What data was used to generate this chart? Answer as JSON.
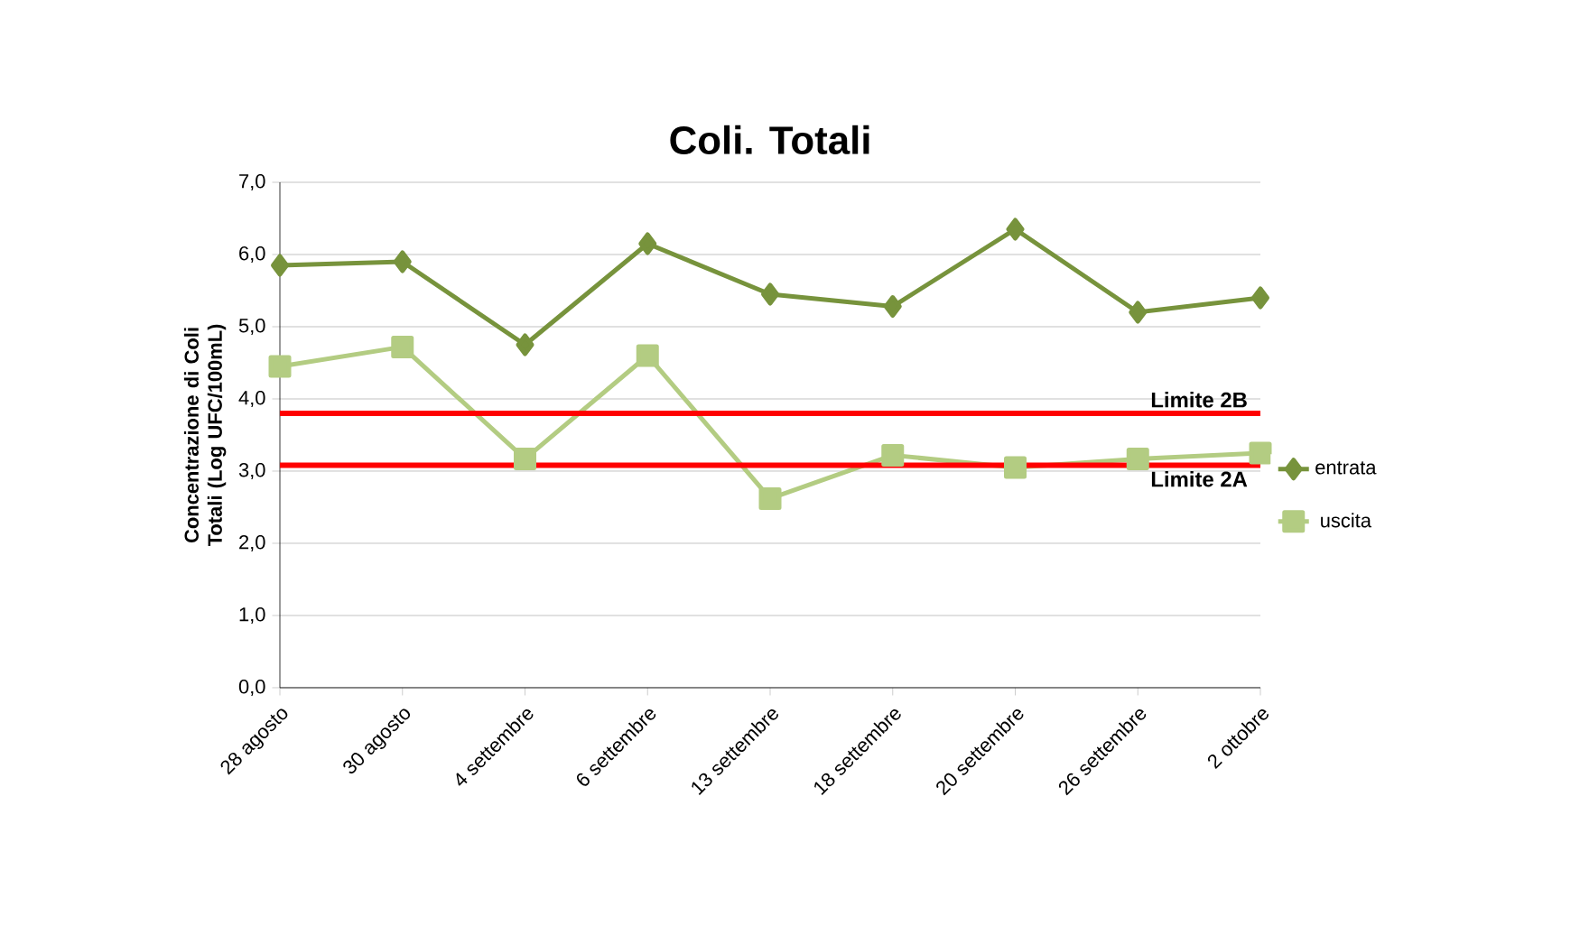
{
  "chart_data": {
    "type": "line",
    "title": "Coli. Totali",
    "ylabel": "Concentrazione di Coli Totali (Log UFC/100mL)",
    "categories": [
      "28 agosto",
      "30 agosto",
      "4 settembre",
      "6 settembre",
      "13 settembre",
      "18 settembre",
      "20 settembre",
      "26 settembre",
      "2 ottobre"
    ],
    "series": [
      {
        "name": "entrata",
        "color": "#77933c",
        "marker": "diamond",
        "values": [
          5.85,
          5.9,
          4.75,
          6.15,
          5.45,
          5.28,
          6.35,
          5.2,
          5.4
        ]
      },
      {
        "name": "uscita",
        "color": "#b3cc82",
        "marker": "square",
        "values": [
          4.45,
          4.72,
          3.17,
          4.6,
          2.62,
          3.22,
          3.05,
          3.17,
          3.25
        ]
      }
    ],
    "ylim": [
      0,
      7
    ],
    "yticks": [
      {
        "value": 0,
        "label": "0,0"
      },
      {
        "value": 1,
        "label": "1,0"
      },
      {
        "value": 2,
        "label": "2,0"
      },
      {
        "value": 3,
        "label": "3,0"
      },
      {
        "value": 4,
        "label": "4,0"
      },
      {
        "value": 5,
        "label": "5,0"
      },
      {
        "value": 6,
        "label": "6,0"
      },
      {
        "value": 7,
        "label": "7,0"
      }
    ],
    "ref_lines": [
      {
        "axis": "y",
        "value": 3.8,
        "label": "Limite 2B",
        "color": "#ff0000"
      },
      {
        "axis": "y",
        "value": 3.08,
        "label": "Limite 2A",
        "color": "#ff0000"
      }
    ],
    "grid": "y",
    "legend": "right"
  }
}
